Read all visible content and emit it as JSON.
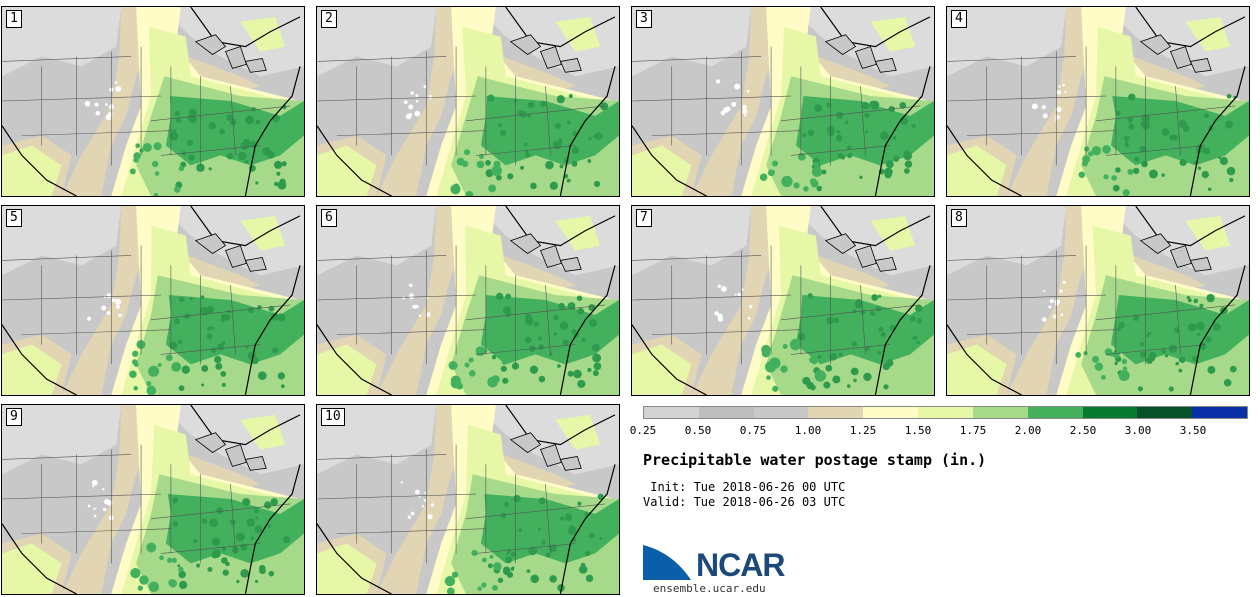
{
  "stamps": [
    {
      "label": "1",
      "variant": 0
    },
    {
      "label": "2",
      "variant": 1
    },
    {
      "label": "3",
      "variant": 2
    },
    {
      "label": "4",
      "variant": 3
    },
    {
      "label": "5",
      "variant": 4
    },
    {
      "label": "6",
      "variant": 5
    },
    {
      "label": "7",
      "variant": 6
    },
    {
      "label": "8",
      "variant": 7
    },
    {
      "label": "9",
      "variant": 8
    },
    {
      "label": "10",
      "variant": 9
    }
  ],
  "colorbar": {
    "colors": [
      "#d2d2d2",
      "#bebebe",
      "#c8c8c8",
      "#e2d5b4",
      "#fffcc8",
      "#e6f7a8",
      "#a6d98a",
      "#42b05c",
      "#087a32",
      "#06502a",
      "#0a2fa8"
    ],
    "ticks": [
      "0.25",
      "0.50",
      "0.75",
      "1.00",
      "1.25",
      "1.50",
      "1.75",
      "2.00",
      "2.50",
      "3.00",
      "3.50"
    ]
  },
  "title": "Precipitable water postage stamp (in.)",
  "init": " Init: Tue 2018-06-26 00 UTC",
  "valid": "Valid: Tue 2018-06-26 03 UTC",
  "logo": {
    "text": "NCAR",
    "site": "ensemble.ucar.edu",
    "colors": {
      "swoosh": "#0a5fa8",
      "text": "#1b4a7a"
    }
  },
  "map_colors": {
    "dry_gray": "#c8c8c8",
    "light_gray": "#dcdcdc",
    "tan": "#e2d5b4",
    "pale_yellow": "#fffcc8",
    "light_green": "#e6f7a8",
    "mid_green": "#a6d98a",
    "green": "#42b05c",
    "dark_green": "#2e9a4c"
  }
}
